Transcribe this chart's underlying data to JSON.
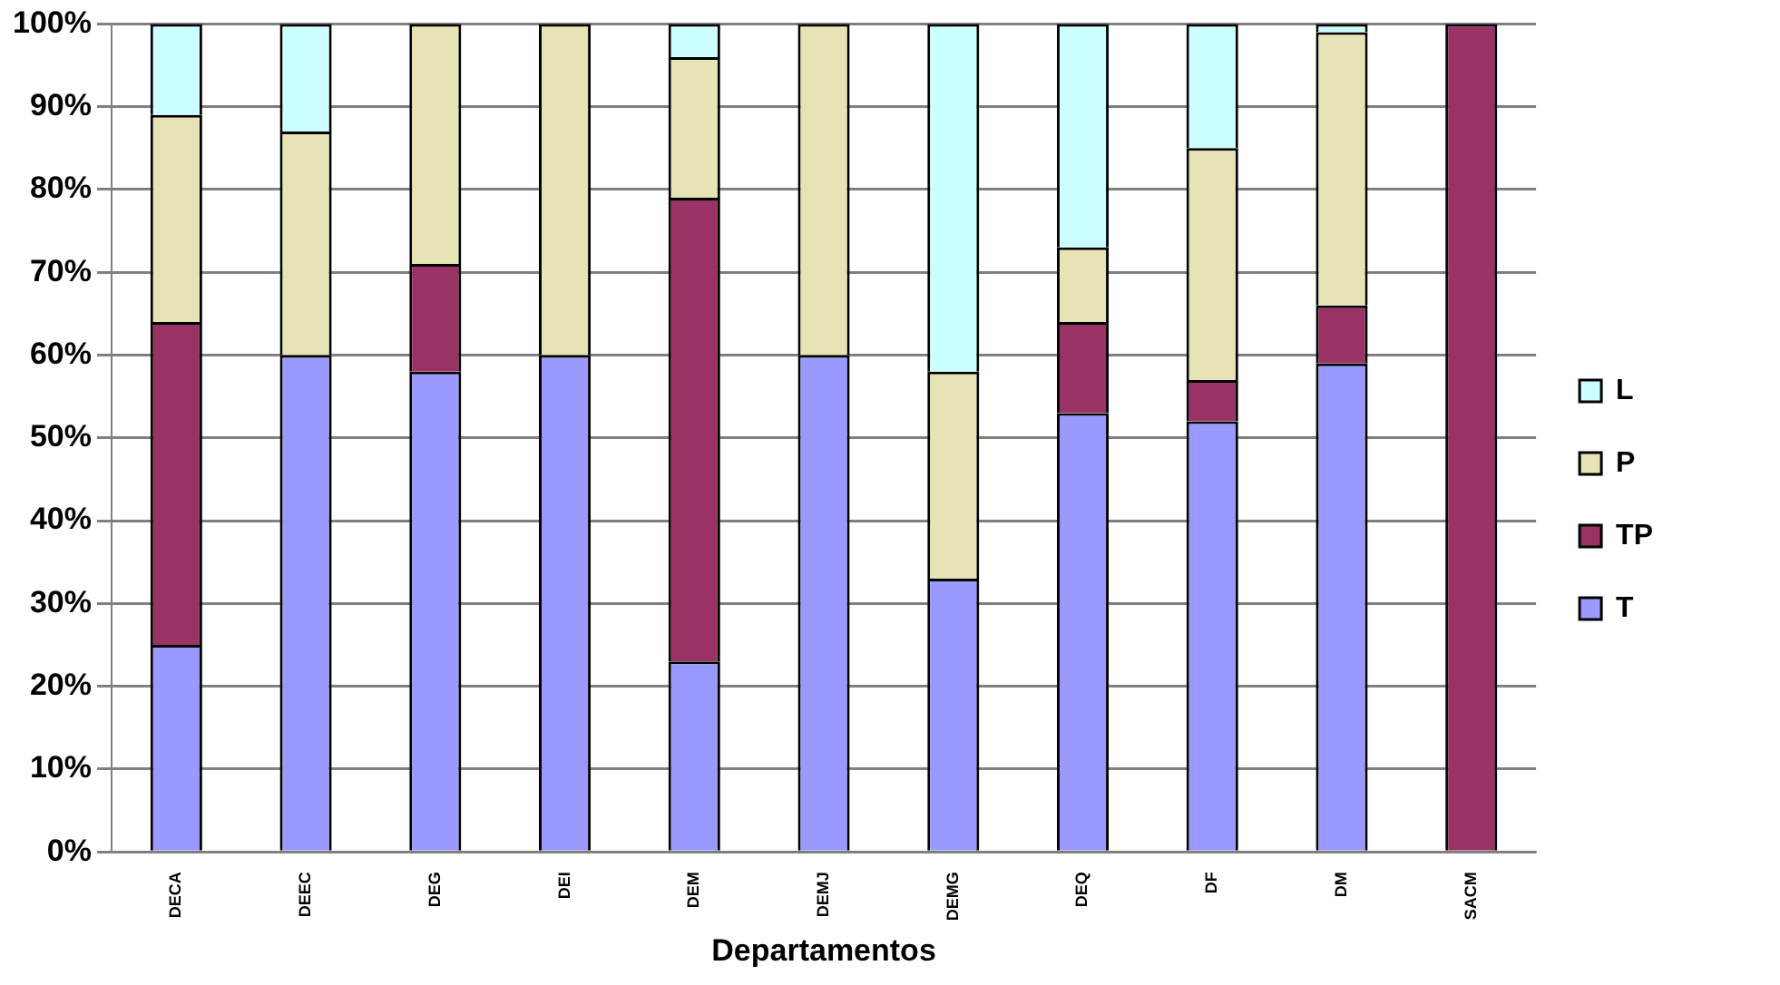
{
  "chart_data": {
    "type": "bar",
    "stacked": true,
    "xlabel": "Departamentos",
    "categories": [
      "DECA",
      "DEEC",
      "DEG",
      "DEI",
      "DEM",
      "DEMJ",
      "DEMG",
      "DEQ",
      "DF",
      "DM",
      "SACM"
    ],
    "series": [
      {
        "name": "T",
        "color": "#9999ff",
        "values": [
          25,
          60,
          58,
          60,
          23,
          60,
          33,
          53,
          52,
          59,
          0
        ]
      },
      {
        "name": "TP",
        "color": "#993366",
        "values": [
          39,
          0,
          13,
          0,
          56,
          0,
          0,
          11,
          5,
          7,
          100
        ]
      },
      {
        "name": "P",
        "color": "#e6e4b4",
        "values": [
          25,
          27,
          29,
          40,
          17,
          40,
          25,
          9,
          28,
          33,
          0
        ]
      },
      {
        "name": "L",
        "color": "#ccffff",
        "values": [
          11,
          13,
          0,
          0,
          4,
          0,
          42,
          27,
          15,
          1,
          0
        ]
      }
    ],
    "ylim": [
      0,
      100
    ],
    "yticks": [
      {
        "value": 0,
        "label": "0%"
      },
      {
        "value": 10,
        "label": "10%"
      },
      {
        "value": 20,
        "label": "20%"
      },
      {
        "value": 30,
        "label": "30%"
      },
      {
        "value": 40,
        "label": "40%"
      },
      {
        "value": 50,
        "label": "50%"
      },
      {
        "value": 60,
        "label": "60%"
      },
      {
        "value": 70,
        "label": "70%"
      },
      {
        "value": 80,
        "label": "80%"
      },
      {
        "value": 90,
        "label": "90%"
      },
      {
        "value": 100,
        "label": "100%"
      }
    ],
    "grid": "y",
    "legend": "right"
  }
}
